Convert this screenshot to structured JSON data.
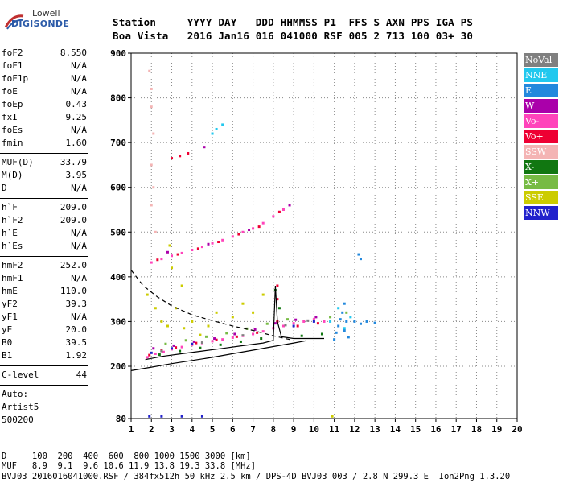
{
  "logo": {
    "top": "Lowell",
    "main": "DIGISONDE"
  },
  "header": {
    "line1": "Station     YYYY DAY   DDD HHMMSS P1  FFS S AXN PPS IGA PS",
    "line2": "Boa Vista   2016 Jan16 016 041000 RSF 005 2 713 100 03+ 30"
  },
  "params": {
    "group1": [
      {
        "key": "foF2",
        "value": "8.550"
      },
      {
        "key": "foF1",
        "value": "N/A"
      },
      {
        "key": "foF1p",
        "value": "N/A"
      },
      {
        "key": "foE",
        "value": "N/A"
      },
      {
        "key": "foEp",
        "value": "0.43"
      },
      {
        "key": "fxI",
        "value": "9.25"
      },
      {
        "key": "foEs",
        "value": "N/A"
      },
      {
        "key": "fmin",
        "value": "1.60"
      }
    ],
    "group2": [
      {
        "key": "MUF(D)",
        "value": "33.79"
      },
      {
        "key": "M(D)",
        "value": "3.95"
      },
      {
        "key": "D",
        "value": "N/A"
      }
    ],
    "group3": [
      {
        "key": "h`F",
        "value": "209.0"
      },
      {
        "key": "h`F2",
        "value": "209.0"
      },
      {
        "key": "h`E",
        "value": "N/A"
      },
      {
        "key": "h`Es",
        "value": "N/A"
      }
    ],
    "group4": [
      {
        "key": "hmF2",
        "value": "252.0"
      },
      {
        "key": "hmF1",
        "value": "N/A"
      },
      {
        "key": "hmE",
        "value": "110.0"
      },
      {
        "key": "yF2",
        "value": "39.3"
      },
      {
        "key": "yF1",
        "value": "N/A"
      },
      {
        "key": "yE",
        "value": "20.0"
      },
      {
        "key": "B0",
        "value": "39.5"
      },
      {
        "key": "B1",
        "value": "1.92"
      }
    ],
    "clevel": {
      "key": "C-level",
      "value": "44"
    },
    "auto": [
      "Auto:",
      "Artist5",
      "500200"
    ]
  },
  "legend": [
    {
      "label": "NoVal",
      "color": "#808080"
    },
    {
      "label": "NNE",
      "color": "#22c8ee"
    },
    {
      "label": "E",
      "color": "#2288dd"
    },
    {
      "label": "W",
      "color": "#aa00aa"
    },
    {
      "label": "Vo-",
      "color": "#ff44bb"
    },
    {
      "label": "Vo+",
      "color": "#ee0033"
    },
    {
      "label": "SSW",
      "color": "#f4b4b4"
    },
    {
      "label": "X-",
      "color": "#117711"
    },
    {
      "label": "X+",
      "color": "#77bb44"
    },
    {
      "label": "SSE",
      "color": "#cccc00"
    },
    {
      "label": "NNW",
      "color": "#2222cc"
    }
  ],
  "footer": {
    "line1": "D     100  200  400  600  800 1000 1500 3000 [km]",
    "line2": "MUF   8.9  9.1  9.6 10.6 11.9 13.8 19.3 33.8 [MHz]",
    "line3": "BVJ03_2016016041000.RSF / 384fx512h 50 kHz 2.5 km / DPS-4D BVJ03 003 / 2.8 N 299.3 E  Ion2Png 1.3.20"
  },
  "chart_data": {
    "type": "scatter",
    "title": "",
    "xlabel": "",
    "ylabel": "",
    "xlim": [
      1,
      20
    ],
    "ylim": [
      80,
      900
    ],
    "x_ticks": [
      1,
      2,
      3,
      4,
      5,
      6,
      7,
      8,
      9,
      10,
      11,
      12,
      13,
      14,
      15,
      16,
      17,
      18,
      19,
      20
    ],
    "y_ticks": [
      80,
      200,
      300,
      400,
      500,
      600,
      700,
      800,
      900
    ],
    "series": [
      {
        "name": "Vo-",
        "color": "#ff44bb",
        "points": [
          [
            1.8,
            220
          ],
          [
            2.2,
            228
          ],
          [
            2.6,
            232
          ],
          [
            3.0,
            238
          ],
          [
            3.5,
            243
          ],
          [
            4.0,
            248
          ],
          [
            4.5,
            252
          ],
          [
            5.0,
            256
          ],
          [
            5.5,
            260
          ],
          [
            6.0,
            264
          ],
          [
            6.5,
            268
          ],
          [
            7.0,
            272
          ],
          [
            7.5,
            278
          ],
          [
            8.0,
            285
          ],
          [
            8.5,
            290
          ],
          [
            9.0,
            296
          ],
          [
            9.5,
            300
          ],
          [
            10.0,
            305
          ],
          [
            10.5,
            300
          ],
          [
            2.0,
            432
          ],
          [
            2.5,
            440
          ],
          [
            3.0,
            447
          ],
          [
            3.5,
            453
          ],
          [
            4.0,
            460
          ],
          [
            4.5,
            467
          ],
          [
            5.0,
            475
          ],
          [
            5.5,
            482
          ],
          [
            6.0,
            490
          ],
          [
            6.5,
            500
          ],
          [
            7.0,
            508
          ],
          [
            7.5,
            520
          ],
          [
            8.0,
            535
          ],
          [
            8.5,
            550
          ]
        ]
      },
      {
        "name": "Vo+",
        "color": "#ee0033",
        "points": [
          [
            1.9,
            225
          ],
          [
            2.5,
            235
          ],
          [
            3.2,
            242
          ],
          [
            4.2,
            252
          ],
          [
            5.2,
            259
          ],
          [
            6.2,
            266
          ],
          [
            7.2,
            275
          ],
          [
            8.2,
            300
          ],
          [
            9.2,
            290
          ],
          [
            10.2,
            296
          ],
          [
            2.3,
            438
          ],
          [
            3.3,
            450
          ],
          [
            4.3,
            463
          ],
          [
            5.3,
            478
          ],
          [
            6.3,
            495
          ],
          [
            7.3,
            512
          ],
          [
            8.3,
            545
          ],
          [
            3.0,
            665
          ],
          [
            3.4,
            670
          ],
          [
            3.8,
            676
          ],
          [
            8.2,
            350
          ],
          [
            8.2,
            380
          ]
        ]
      },
      {
        "name": "W",
        "color": "#aa00aa",
        "points": [
          [
            2.1,
            240
          ],
          [
            3.1,
            246
          ],
          [
            4.1,
            255
          ],
          [
            5.1,
            262
          ],
          [
            6.1,
            272
          ],
          [
            7.1,
            282
          ],
          [
            8.1,
            296
          ],
          [
            9.1,
            304
          ],
          [
            10.1,
            310
          ],
          [
            2.8,
            455
          ],
          [
            4.8,
            473
          ],
          [
            6.8,
            505
          ],
          [
            8.8,
            560
          ],
          [
            4.6,
            690
          ]
        ]
      },
      {
        "name": "X-",
        "color": "#117711",
        "points": [
          [
            2.4,
            226
          ],
          [
            3.4,
            234
          ],
          [
            4.4,
            241
          ],
          [
            5.4,
            248
          ],
          [
            6.4,
            255
          ],
          [
            7.4,
            262
          ],
          [
            8.1,
            370
          ],
          [
            8.3,
            330
          ],
          [
            9.4,
            268
          ],
          [
            10.4,
            272
          ]
        ]
      },
      {
        "name": "X+",
        "color": "#77bb44",
        "points": [
          [
            2.7,
            250
          ],
          [
            3.7,
            258
          ],
          [
            4.7,
            266
          ],
          [
            5.7,
            274
          ],
          [
            6.7,
            284
          ],
          [
            7.7,
            295
          ],
          [
            8.7,
            305
          ],
          [
            10.8,
            310
          ],
          [
            11.6,
            320
          ]
        ]
      },
      {
        "name": "SSE",
        "color": "#cccc00",
        "points": [
          [
            1.8,
            360
          ],
          [
            2.2,
            330
          ],
          [
            2.5,
            300
          ],
          [
            2.8,
            290
          ],
          [
            3.2,
            330
          ],
          [
            3.6,
            285
          ],
          [
            4.0,
            300
          ],
          [
            4.4,
            270
          ],
          [
            4.8,
            290
          ],
          [
            5.2,
            320
          ],
          [
            6.0,
            310
          ],
          [
            6.5,
            340
          ],
          [
            7.0,
            320
          ],
          [
            7.5,
            360
          ],
          [
            3.0,
            420
          ],
          [
            3.5,
            380
          ],
          [
            2.9,
            470
          ],
          [
            10.9,
            85
          ]
        ]
      },
      {
        "name": "E",
        "color": "#2288dd",
        "points": [
          [
            11.0,
            260
          ],
          [
            11.1,
            275
          ],
          [
            11.2,
            290
          ],
          [
            11.3,
            305
          ],
          [
            11.4,
            320
          ],
          [
            11.5,
            280
          ],
          [
            11.6,
            300
          ],
          [
            11.7,
            265
          ],
          [
            11.5,
            340
          ],
          [
            12.0,
            300
          ],
          [
            12.3,
            295
          ],
          [
            12.6,
            300
          ],
          [
            13.0,
            297
          ],
          [
            12.2,
            450
          ],
          [
            12.3,
            440
          ]
        ]
      },
      {
        "name": "NNE",
        "color": "#22c8ee",
        "points": [
          [
            10.8,
            300
          ],
          [
            11.2,
            330
          ],
          [
            11.5,
            285
          ],
          [
            11.8,
            310
          ],
          [
            5.5,
            740
          ],
          [
            5.0,
            720
          ],
          [
            5.2,
            730
          ]
        ]
      },
      {
        "name": "NNW",
        "color": "#2222cc",
        "points": [
          [
            2.0,
            230
          ],
          [
            3.0,
            240
          ],
          [
            4.0,
            250
          ],
          [
            9.0,
            290
          ],
          [
            10.0,
            300
          ],
          [
            1.9,
            85
          ],
          [
            2.5,
            85
          ],
          [
            3.5,
            85
          ],
          [
            4.5,
            85
          ]
        ]
      },
      {
        "name": "SSW",
        "color": "#f4b4b4",
        "points": [
          [
            1.9,
            860
          ],
          [
            2.0,
            820
          ],
          [
            2.0,
            780
          ],
          [
            2.1,
            720
          ],
          [
            2.0,
            650
          ],
          [
            2.1,
            600
          ],
          [
            2.0,
            560
          ],
          [
            2.2,
            500
          ]
        ]
      },
      {
        "name": "NoVal",
        "color": "#808080",
        "points": [
          [
            2.5,
            234
          ],
          [
            4.5,
            253
          ],
          [
            6.5,
            269
          ],
          [
            8.6,
            292
          ],
          [
            9.7,
            302
          ]
        ]
      }
    ],
    "curves": [
      {
        "name": "virtual-height-trace",
        "style": "solid",
        "color": "#000000",
        "points": [
          [
            1.7,
            215
          ],
          [
            2.5,
            222
          ],
          [
            3.5,
            228
          ],
          [
            4.5,
            234
          ],
          [
            5.5,
            240
          ],
          [
            6.5,
            246
          ],
          [
            7.5,
            252
          ],
          [
            8.0,
            258
          ],
          [
            8.1,
            380
          ],
          [
            8.2,
            300
          ],
          [
            8.4,
            266
          ],
          [
            9.0,
            262
          ],
          [
            10.0,
            262
          ],
          [
            10.5,
            262
          ]
        ]
      },
      {
        "name": "true-height-profile",
        "style": "solid",
        "color": "#000000",
        "points": [
          [
            1.0,
            190
          ],
          [
            2.0,
            198
          ],
          [
            3.0,
            206
          ],
          [
            4.0,
            213
          ],
          [
            5.0,
            220
          ],
          [
            6.0,
            228
          ],
          [
            7.0,
            236
          ],
          [
            8.0,
            244
          ],
          [
            9.0,
            252
          ],
          [
            9.6,
            257
          ]
        ]
      },
      {
        "name": "extrapolated-profile",
        "style": "dashed",
        "color": "#000000",
        "points": [
          [
            1.0,
            415
          ],
          [
            1.6,
            380
          ],
          [
            2.3,
            355
          ],
          [
            3.0,
            335
          ],
          [
            4.0,
            315
          ],
          [
            5.0,
            302
          ],
          [
            6.0,
            290
          ],
          [
            7.0,
            280
          ],
          [
            8.0,
            268
          ],
          [
            8.8,
            260
          ]
        ]
      }
    ]
  }
}
